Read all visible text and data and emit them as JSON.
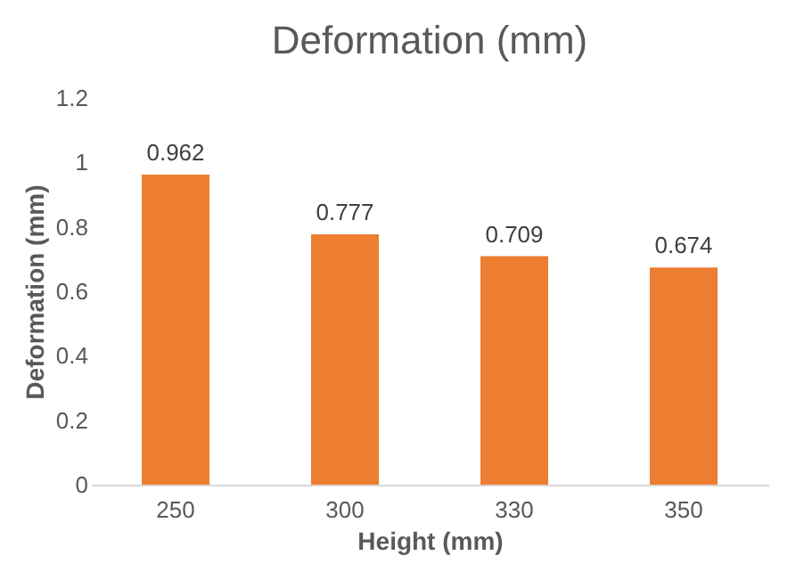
{
  "chart_data": {
    "type": "bar",
    "title": "Deformation (mm)",
    "xlabel": "Height (mm)",
    "ylabel": "Deformation (mm)",
    "categories": [
      "250",
      "300",
      "330",
      "350"
    ],
    "series": [
      {
        "color": "#ed7d31",
        "values": [
          0.962,
          0.777,
          0.709,
          0.674
        ]
      }
    ],
    "ylim": [
      0,
      1.2
    ],
    "yticks": [
      0,
      0.2,
      0.4,
      0.6,
      0.8,
      1,
      1.2
    ],
    "grid": false,
    "legend": false,
    "data_labels": true
  }
}
